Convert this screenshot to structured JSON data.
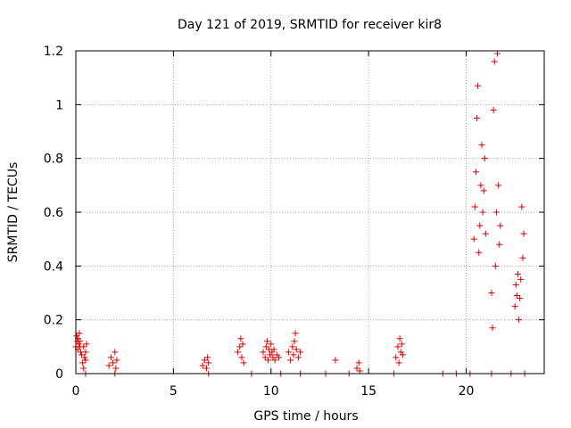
{
  "chart_data": {
    "type": "scatter",
    "title": "Day 121 of 2019, SRMTID for receiver kir8",
    "xlabel": "GPS time / hours",
    "ylabel": "SRMTID / TECUs",
    "xlim": [
      0,
      24
    ],
    "ylim": [
      0,
      1.2
    ],
    "x_ticks": [
      0,
      5,
      10,
      15,
      20
    ],
    "x_tick_labels": [
      "0",
      "5",
      "10",
      "15",
      "20"
    ],
    "y_ticks": [
      0,
      0.2,
      0.4,
      0.6,
      0.8,
      1.0,
      1.2
    ],
    "y_tick_labels": [
      "0",
      "0.2",
      "0.4",
      "0.6",
      "0.8",
      "1",
      "1.2"
    ],
    "grid": true,
    "marker": "+",
    "series": [
      {
        "name": "SRMTID",
        "color": "#dd0000",
        "x": [
          0.0,
          0.05,
          0.08,
          0.1,
          0.12,
          0.15,
          0.18,
          0.2,
          0.22,
          0.25,
          0.3,
          0.35,
          0.4,
          0.45,
          0.5,
          0.55,
          0.4,
          0.5,
          1.7,
          1.8,
          1.9,
          2.0,
          2.05,
          2.1,
          6.5,
          6.6,
          6.7,
          6.75,
          6.8,
          8.3,
          8.4,
          8.45,
          8.5,
          8.55,
          8.6,
          9.6,
          9.7,
          9.75,
          9.8,
          9.85,
          9.9,
          9.95,
          10.0,
          10.05,
          10.1,
          10.15,
          10.2,
          10.3,
          10.4,
          10.9,
          11.0,
          11.1,
          11.15,
          11.2,
          11.25,
          11.3,
          11.4,
          11.5,
          13.3,
          14.4,
          14.5,
          14.55,
          16.4,
          16.5,
          16.55,
          16.6,
          16.65,
          16.7,
          16.75,
          20.4,
          20.45,
          20.5,
          20.55,
          20.6,
          20.65,
          20.7,
          20.75,
          20.8,
          20.85,
          20.9,
          20.95,
          21.0,
          21.3,
          21.35,
          21.4,
          21.45,
          21.5,
          21.55,
          21.6,
          21.65,
          21.7,
          21.75,
          22.5,
          22.55,
          22.6,
          22.65,
          22.7,
          22.75,
          22.8,
          22.85,
          22.9,
          22.95,
          0.5,
          2.0,
          6.8,
          9.0,
          10.5,
          11.5,
          12.8,
          14.0,
          16.3,
          18.8,
          19.5,
          20.2,
          21.3,
          22.3,
          23.0
        ],
        "y": [
          0.1,
          0.14,
          0.12,
          0.09,
          0.13,
          0.11,
          0.15,
          0.1,
          0.12,
          0.08,
          0.07,
          0.04,
          0.1,
          0.06,
          0.08,
          0.11,
          0.02,
          0.05,
          0.03,
          0.06,
          0.04,
          0.08,
          0.02,
          0.05,
          0.03,
          0.05,
          0.02,
          0.06,
          0.04,
          0.08,
          0.1,
          0.13,
          0.06,
          0.11,
          0.04,
          0.08,
          0.06,
          0.1,
          0.12,
          0.05,
          0.09,
          0.07,
          0.11,
          0.08,
          0.06,
          0.09,
          0.05,
          0.07,
          0.06,
          0.08,
          0.05,
          0.1,
          0.07,
          0.12,
          0.15,
          0.09,
          0.06,
          0.08,
          0.05,
          0.02,
          0.04,
          0.01,
          0.06,
          0.1,
          0.04,
          0.13,
          0.08,
          0.11,
          0.07,
          0.5,
          0.62,
          0.75,
          0.95,
          1.07,
          0.45,
          0.55,
          0.7,
          0.85,
          0.6,
          0.68,
          0.8,
          0.52,
          0.3,
          0.17,
          0.98,
          1.16,
          0.4,
          0.6,
          1.19,
          0.7,
          0.48,
          0.55,
          0.25,
          0.33,
          0.29,
          0.37,
          0.2,
          0.28,
          0.35,
          0.62,
          0.43,
          0.52,
          0.0,
          0.0,
          0.0,
          0.0,
          0.0,
          0.0,
          0.0,
          0.0,
          0.0,
          0.0,
          0.0,
          0.0,
          0.0,
          0.0,
          0.0
        ]
      }
    ]
  }
}
